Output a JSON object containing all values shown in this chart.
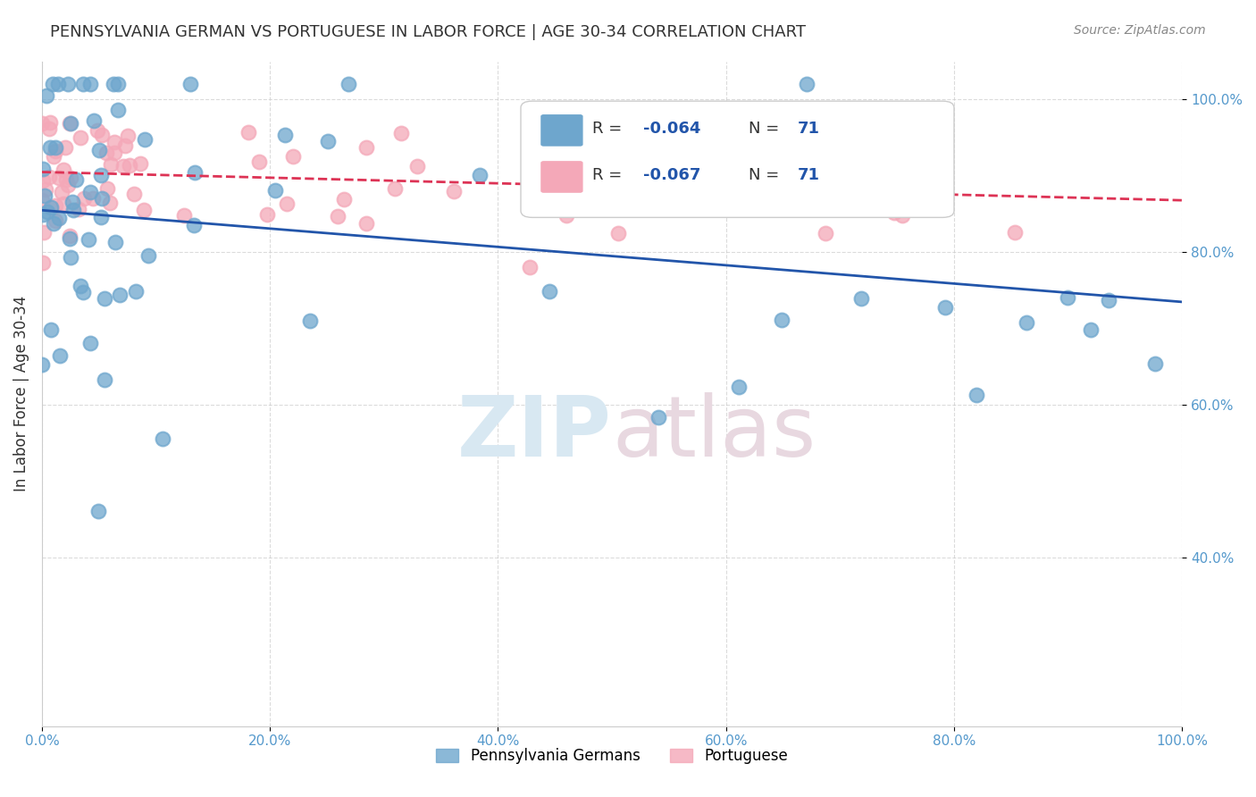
{
  "title": "PENNSYLVANIA GERMAN VS PORTUGUESE IN LABOR FORCE | AGE 30-34 CORRELATION CHART",
  "source": "Source: ZipAtlas.com",
  "ylabel": "In Labor Force | Age 30-34",
  "xlim": [
    0.0,
    1.0
  ],
  "ylim": [
    0.18,
    1.05
  ],
  "x_tick_labels": [
    "0.0%",
    "20.0%",
    "40.0%",
    "60.0%",
    "80.0%",
    "100.0%"
  ],
  "y_tick_labels": [
    "40.0%",
    "60.0%",
    "80.0%",
    "100.0%"
  ],
  "legend_blue_label": "Pennsylvania Germans",
  "legend_pink_label": "Portuguese",
  "blue_R": "-0.064",
  "blue_N": "71",
  "pink_R": "-0.067",
  "pink_N": "71",
  "blue_color": "#6ea6cd",
  "pink_color": "#f4a8b8",
  "blue_line_color": "#2255aa",
  "pink_line_color": "#dd3355",
  "blue_trend_start": 0.855,
  "blue_trend_end": 0.735,
  "pink_trend_start": 0.905,
  "pink_trend_end": 0.868,
  "watermark_zip": "ZIP",
  "watermark_atlas": "atlas"
}
